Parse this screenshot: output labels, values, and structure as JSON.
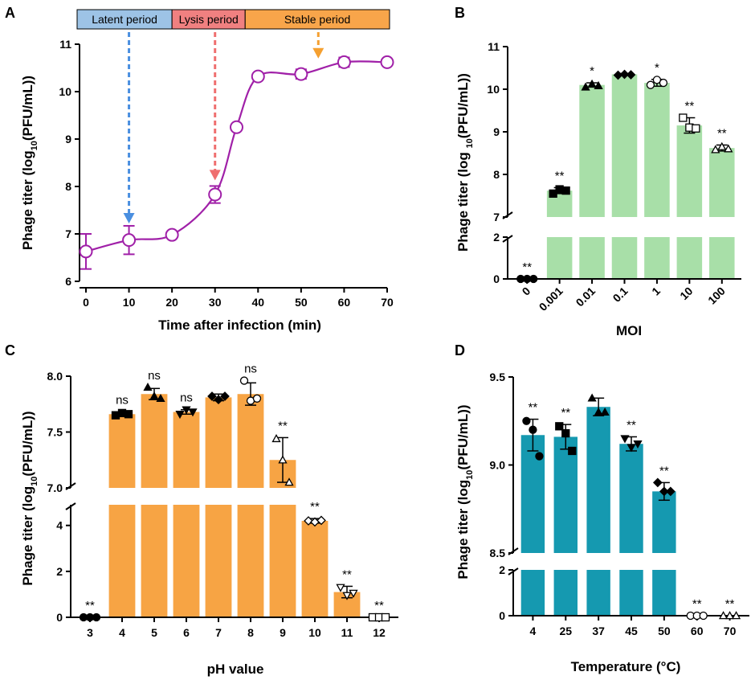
{
  "figure": {
    "panel_letters": [
      "A",
      "B",
      "C",
      "D"
    ]
  },
  "chart_data": [
    {
      "panel": "A",
      "type": "line",
      "title": "",
      "xlabel": "Time after infection (min)",
      "ylabel": "Phage titer (log10(PFU/mL))",
      "ylabel_parts": {
        "pre": "Phage titer (log",
        "sub": "10",
        "post": "(PFU/mL))"
      },
      "xlim": [
        0,
        70
      ],
      "ylim": [
        6,
        11
      ],
      "x_ticks": [
        "0",
        "10",
        "20",
        "30",
        "40",
        "50",
        "60",
        "70"
      ],
      "y_ticks": [
        "6",
        "7",
        "8",
        "9",
        "10",
        "11"
      ],
      "series": [
        {
          "name": "phage titer",
          "color": "#a020a8",
          "x": [
            0,
            10,
            20,
            30,
            35,
            40,
            50,
            60,
            70
          ],
          "y": [
            6.63,
            6.87,
            6.98,
            7.83,
            9.25,
            10.32,
            10.37,
            10.62,
            10.62
          ],
          "err": [
            0.37,
            0.3,
            0.0,
            0.18,
            0.0,
            0.0,
            0.1,
            0.1,
            0.0
          ]
        }
      ],
      "phases": [
        {
          "label": "Latent period",
          "x_start": 0,
          "x_end": 20,
          "color": "#9dc3e6",
          "arrow_x": 10,
          "arrow_color": "#4a8fe0"
        },
        {
          "label": "Lysis period",
          "x_start": 20,
          "x_end": 37,
          "color": "#f08080",
          "arrow_x": 30,
          "arrow_color": "#ef6f6f"
        },
        {
          "label": "Stable period",
          "x_start": 37,
          "x_end": 70,
          "color": "#f8a54a",
          "arrow_x": 54,
          "arrow_color": "#f5a030"
        }
      ]
    },
    {
      "panel": "B",
      "type": "bar",
      "title": "",
      "xlabel": "MOI",
      "ylabel": "Phage titer (log 10(PFU/mL))",
      "ylabel_parts": {
        "pre": "Phage titer (log ",
        "sub": "10",
        "post": "(PFU/mL))"
      },
      "categories": [
        "0",
        "0.001",
        "0.01",
        "0.1",
        "1",
        "10",
        "100"
      ],
      "values": [
        0,
        7.62,
        10.1,
        10.35,
        10.15,
        9.15,
        8.62
      ],
      "err": [
        0,
        0.07,
        0.05,
        0.02,
        0.08,
        0.18,
        0.07
      ],
      "points": [
        [
          0,
          0,
          0
        ],
        [
          7.55,
          7.65,
          7.62
        ],
        [
          10.05,
          10.12,
          10.08
        ],
        [
          10.33,
          10.35,
          10.34
        ],
        [
          10.1,
          10.22,
          10.15
        ],
        [
          9.33,
          9.1,
          9.08
        ],
        [
          8.58,
          8.65,
          8.6
        ]
      ],
      "markers": [
        "circle-filled",
        "square-filled",
        "triangle-filled",
        "diamond-filled",
        "circle-open",
        "square-open",
        "triangle-open"
      ],
      "significance": [
        "**",
        "**",
        "*",
        "",
        "*",
        "**",
        "**"
      ],
      "bar_color": "#a8dfa8",
      "axis_break": {
        "lower": [
          0,
          2
        ],
        "upper": [
          7,
          11
        ]
      },
      "y_ticks_lower": [
        "0",
        "2"
      ],
      "y_ticks_upper": [
        "7",
        "8",
        "9",
        "10",
        "11"
      ]
    },
    {
      "panel": "C",
      "type": "bar",
      "title": "",
      "xlabel": "pH value",
      "ylabel": "Phage titer (log10(PFU/mL))",
      "ylabel_parts": {
        "pre": "Phage titer (log",
        "sub": "10",
        "post": "(PFU/mL))"
      },
      "categories": [
        "3",
        "4",
        "5",
        "6",
        "7",
        "8",
        "9",
        "10",
        "11",
        "12"
      ],
      "values": [
        0,
        7.66,
        7.84,
        7.68,
        7.81,
        7.84,
        7.25,
        4.2,
        1.1,
        0
      ],
      "err": [
        0,
        0.02,
        0.05,
        0.02,
        0.03,
        0.1,
        0.2,
        0.1,
        0.25,
        0
      ],
      "points": [
        [
          0,
          0,
          0
        ],
        [
          7.65,
          7.67,
          7.66
        ],
        [
          7.9,
          7.82,
          7.8
        ],
        [
          7.66,
          7.7,
          7.68
        ],
        [
          7.82,
          7.79,
          7.82
        ],
        [
          7.96,
          7.78,
          7.8
        ],
        [
          7.44,
          7.25,
          7.05
        ],
        [
          4.2,
          4.15,
          4.22
        ],
        [
          1.3,
          0.95,
          1.05
        ],
        [
          0,
          0,
          0
        ]
      ],
      "markers": [
        "circle-filled",
        "square-filled",
        "triangle-filled",
        "triangle-down-filled",
        "diamond-filled",
        "circle-open",
        "triangle-open",
        "diamond-open",
        "triangle-down-open",
        "square-open"
      ],
      "significance": [
        "**",
        "ns",
        "ns",
        "ns",
        "",
        "ns",
        "**",
        "**",
        "**",
        "**"
      ],
      "bar_color": "#f7a444",
      "axis_break": {
        "lower": [
          0,
          4.9
        ],
        "upper": [
          7.0,
          8.0
        ]
      },
      "y_ticks_lower": [
        "0",
        "2",
        "4"
      ],
      "y_ticks_upper": [
        "7.0",
        "7.5",
        "8.0"
      ]
    },
    {
      "panel": "D",
      "type": "bar",
      "title": "",
      "xlabel": "Temperature (°C)",
      "ylabel": "Phage titer (log10(PFU/mL))",
      "ylabel_parts": {
        "pre": "Phage titer (log",
        "sub": "10",
        "post": "(PFU/mL))"
      },
      "categories": [
        "4",
        "25",
        "37",
        "45",
        "50",
        "60",
        "70"
      ],
      "values": [
        9.17,
        9.16,
        9.33,
        9.12,
        8.85,
        0,
        0
      ],
      "err": [
        0.09,
        0.07,
        0.05,
        0.04,
        0.05,
        0,
        0
      ],
      "points": [
        [
          9.25,
          9.2,
          9.05
        ],
        [
          9.22,
          9.18,
          9.08
        ],
        [
          9.38,
          9.3,
          9.3
        ],
        [
          9.15,
          9.1,
          9.12
        ],
        [
          8.9,
          8.85,
          8.85
        ],
        [
          0,
          0,
          0
        ],
        [
          0,
          0,
          0
        ]
      ],
      "markers": [
        "circle-filled",
        "square-filled",
        "triangle-filled",
        "triangle-down-filled",
        "diamond-filled",
        "circle-open",
        "triangle-open"
      ],
      "significance": [
        "**",
        "**",
        "",
        "**",
        "**",
        "**",
        "**"
      ],
      "bar_color": "#1599b0",
      "axis_break": {
        "lower": [
          0,
          2
        ],
        "upper": [
          8.5,
          9.5
        ]
      },
      "y_ticks_lower": [
        "0",
        "2"
      ],
      "y_ticks_upper": [
        "8.5",
        "9.0",
        "9.5"
      ]
    }
  ]
}
